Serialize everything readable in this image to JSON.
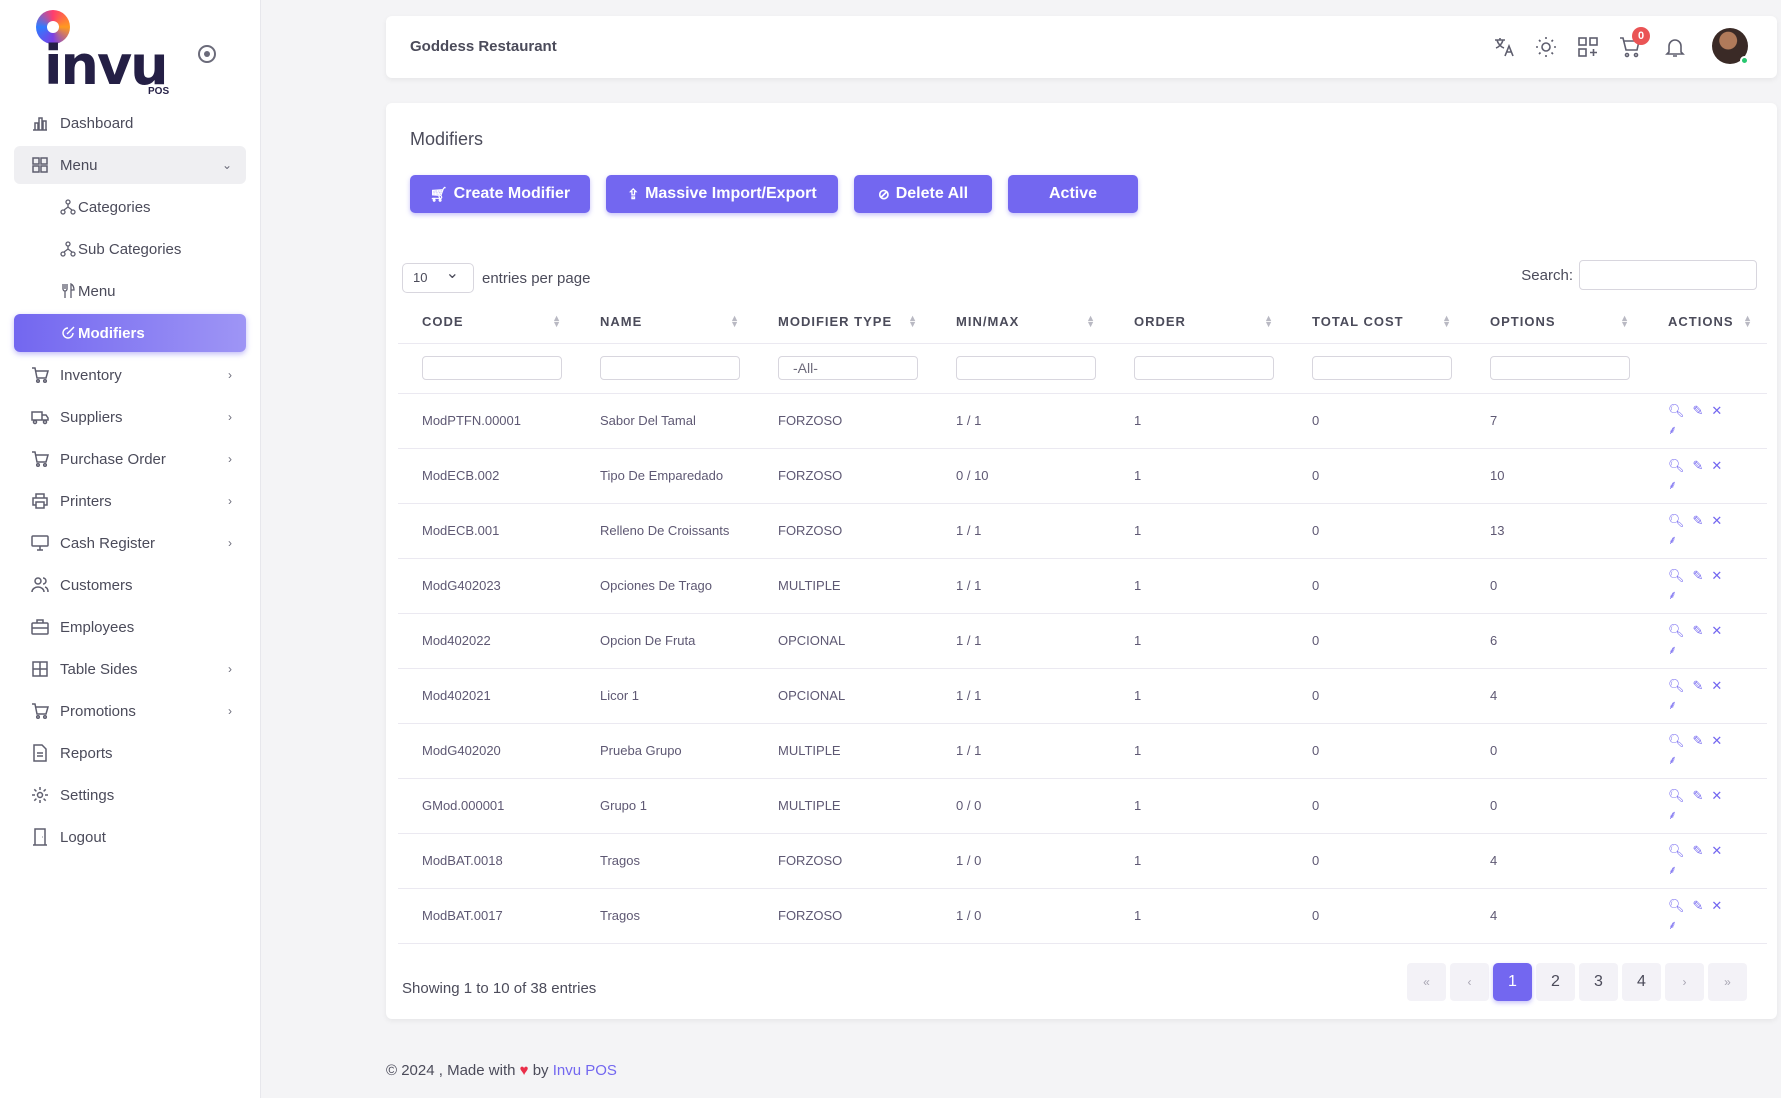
{
  "logo": {
    "text": "invu",
    "sub": "POS"
  },
  "sidebar": {
    "items": [
      {
        "label": "Dashboard",
        "icon": "chart-bar-icon",
        "chevron": false
      },
      {
        "label": "Menu",
        "icon": "grid-icon",
        "chevron": true,
        "open": true,
        "children": [
          {
            "label": "Categories",
            "icon": "hierarchy-icon"
          },
          {
            "label": "Sub Categories",
            "icon": "hierarchy-icon"
          },
          {
            "label": "Menu",
            "icon": "fork-knife-icon"
          },
          {
            "label": "Modifiers",
            "icon": "edit-circle-icon",
            "active": true
          }
        ]
      },
      {
        "label": "Inventory",
        "icon": "cart-icon",
        "chevron": true
      },
      {
        "label": "Suppliers",
        "icon": "truck-icon",
        "chevron": true
      },
      {
        "label": "Purchase Order",
        "icon": "cart-icon",
        "chevron": true
      },
      {
        "label": "Printers",
        "icon": "printer-icon",
        "chevron": true
      },
      {
        "label": "Cash Register",
        "icon": "register-icon",
        "chevron": true
      },
      {
        "label": "Customers",
        "icon": "users-icon",
        "chevron": false
      },
      {
        "label": "Employees",
        "icon": "briefcase-icon",
        "chevron": false
      },
      {
        "label": "Table Sides",
        "icon": "table-icon",
        "chevron": true
      },
      {
        "label": "Promotions",
        "icon": "cart-icon",
        "chevron": true
      },
      {
        "label": "Reports",
        "icon": "file-icon",
        "chevron": false
      },
      {
        "label": "Settings",
        "icon": "gear-icon",
        "chevron": false
      },
      {
        "label": "Logout",
        "icon": "door-icon",
        "chevron": false
      }
    ]
  },
  "header": {
    "title": "Goddess Restaurant",
    "cart_count": "0"
  },
  "main": {
    "title": "Modifiers",
    "buttons": {
      "create": "Create Modifier",
      "import": "Massive Import/Export",
      "delete": "Delete All",
      "active": "Active"
    },
    "entries_value": "10",
    "entries_label": "entries per page",
    "search_label": "Search:",
    "columns": [
      "CODE",
      "NAME",
      "MODIFIER TYPE",
      "MIN/MAX",
      "ORDER",
      "TOTAL COST",
      "OPTIONS",
      "ACTIONS"
    ],
    "type_filter": "-All-",
    "rows": [
      {
        "code": "ModPTFN.00001",
        "name": "Sabor Del Tamal",
        "type": "FORZOSO",
        "minmax": "1 / 1",
        "order": "1",
        "cost": "0",
        "options": "7"
      },
      {
        "code": "ModECB.002",
        "name": "Tipo De Emparedado",
        "type": "FORZOSO",
        "minmax": "0 / 10",
        "order": "1",
        "cost": "0",
        "options": "10"
      },
      {
        "code": "ModECB.001",
        "name": "Relleno De Croissants",
        "type": "FORZOSO",
        "minmax": "1 / 1",
        "order": "1",
        "cost": "0",
        "options": "13"
      },
      {
        "code": "ModG402023",
        "name": "Opciones De Trago",
        "type": "MULTIPLE",
        "minmax": "1 / 1",
        "order": "1",
        "cost": "0",
        "options": "0"
      },
      {
        "code": "Mod402022",
        "name": "Opcion De Fruta",
        "type": "OPCIONAL",
        "minmax": "1 / 1",
        "order": "1",
        "cost": "0",
        "options": "6"
      },
      {
        "code": "Mod402021",
        "name": "Licor 1",
        "type": "OPCIONAL",
        "minmax": "1 / 1",
        "order": "1",
        "cost": "0",
        "options": "4"
      },
      {
        "code": "ModG402020",
        "name": "Prueba Grupo",
        "type": "MULTIPLE",
        "minmax": "1 / 1",
        "order": "1",
        "cost": "0",
        "options": "0"
      },
      {
        "code": "GMod.000001",
        "name": "Grupo 1",
        "type": "MULTIPLE",
        "minmax": "0 / 0",
        "order": "1",
        "cost": "0",
        "options": "0"
      },
      {
        "code": "ModBAT.0018",
        "name": "Tragos",
        "type": "FORZOSO",
        "minmax": "1 / 0",
        "order": "1",
        "cost": "0",
        "options": "4"
      },
      {
        "code": "ModBAT.0017",
        "name": "Tragos",
        "type": "FORZOSO",
        "minmax": "1 / 0",
        "order": "1",
        "cost": "0",
        "options": "4"
      }
    ],
    "showing": "Showing 1 to 10 of 38 entries",
    "pagination": [
      "«",
      "‹",
      "1",
      "2",
      "3",
      "4",
      "›",
      "»"
    ],
    "current_page": "1"
  },
  "footer": {
    "prefix": "© 2024 , Made with",
    "by": "by",
    "brand": "Invu POS"
  },
  "colors": {
    "accent": "#7367f0",
    "badge": "#ea5455",
    "online": "#28c76f"
  }
}
